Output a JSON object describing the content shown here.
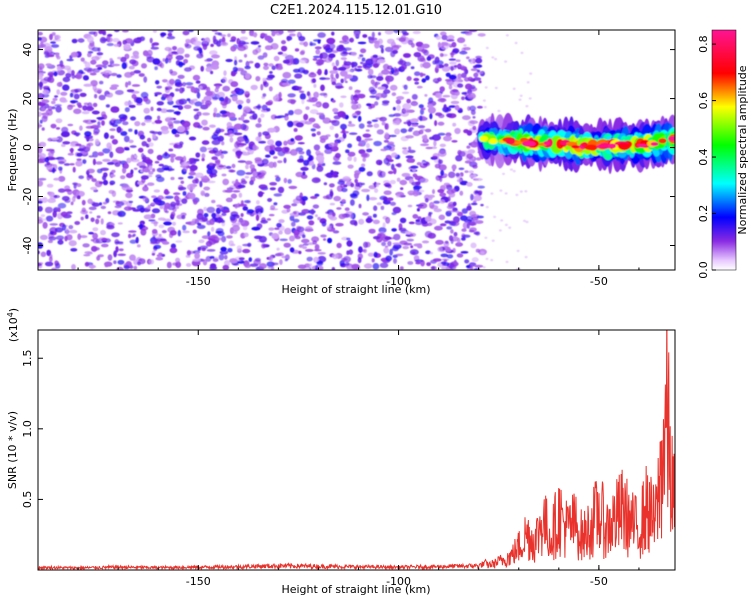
{
  "title": "C2E1.2024.115.12.01.G10",
  "chart_data": [
    {
      "type": "heatmap",
      "xlabel": "Height of straight line (km)",
      "ylabel": "Frequency (Hz)",
      "xlim": [
        -190,
        -31
      ],
      "ylim": [
        -50,
        48
      ],
      "xticks": [
        -150,
        -100,
        -50
      ],
      "yticks": [
        -40,
        -20,
        0,
        20,
        40
      ],
      "colorbar": {
        "label": "Normalized spectral amplitude",
        "range": [
          0,
          0.85
        ],
        "ticks": [
          "0.0",
          "0.2",
          "0.4",
          "0.6",
          "0.8"
        ]
      },
      "noise_region": {
        "x_range": [
          -190,
          -79
        ],
        "typical_amplitude": 0.12
      },
      "signal_band": {
        "x_range": [
          -79,
          -31
        ],
        "center_frequency": [
          [
            -79,
            3.5
          ],
          [
            -70,
            2.5
          ],
          [
            -60,
            1.5
          ],
          [
            -52,
            0.5
          ],
          [
            -45,
            1.0
          ],
          [
            -38,
            1.5
          ],
          [
            -31,
            3.0
          ]
        ],
        "halfwidth_hz": 4,
        "peak_amplitude": 0.85
      },
      "grid": false
    },
    {
      "type": "line",
      "xlabel": "Height of straight line (km)",
      "ylabel": "SNR (10 * v/v)",
      "y_multiplier": "(x10^4)",
      "xlim": [
        -190,
        -31
      ],
      "ylim": [
        0,
        17000
      ],
      "xticks": [
        -150,
        -100,
        -50
      ],
      "yticks": [
        {
          "value": 5000,
          "label": "0.5"
        },
        {
          "value": 10000,
          "label": "1.0"
        },
        {
          "value": 15000,
          "label": "1.5"
        }
      ],
      "series": [
        {
          "color": "#e8322b",
          "x": [
            -190,
            -180,
            -170,
            -160,
            -150,
            -140,
            -130,
            -120,
            -110,
            -100,
            -90,
            -80,
            -76,
            -72,
            -70,
            -68,
            -66,
            -64,
            -62,
            -60,
            -58,
            -56,
            -54,
            -52,
            -50,
            -48,
            -46,
            -44,
            -42,
            -40,
            -38,
            -36,
            -35,
            -34,
            -33,
            -32,
            -31
          ],
          "values": [
            180,
            150,
            200,
            170,
            200,
            230,
            300,
            260,
            220,
            200,
            240,
            300,
            700,
            1500,
            2500,
            4000,
            3000,
            5500,
            3500,
            6000,
            4500,
            5000,
            3500,
            4800,
            6200,
            4500,
            5500,
            6500,
            5000,
            4500,
            6800,
            5000,
            8500,
            13000,
            17000,
            10000,
            6500
          ]
        }
      ],
      "grid": false
    }
  ]
}
